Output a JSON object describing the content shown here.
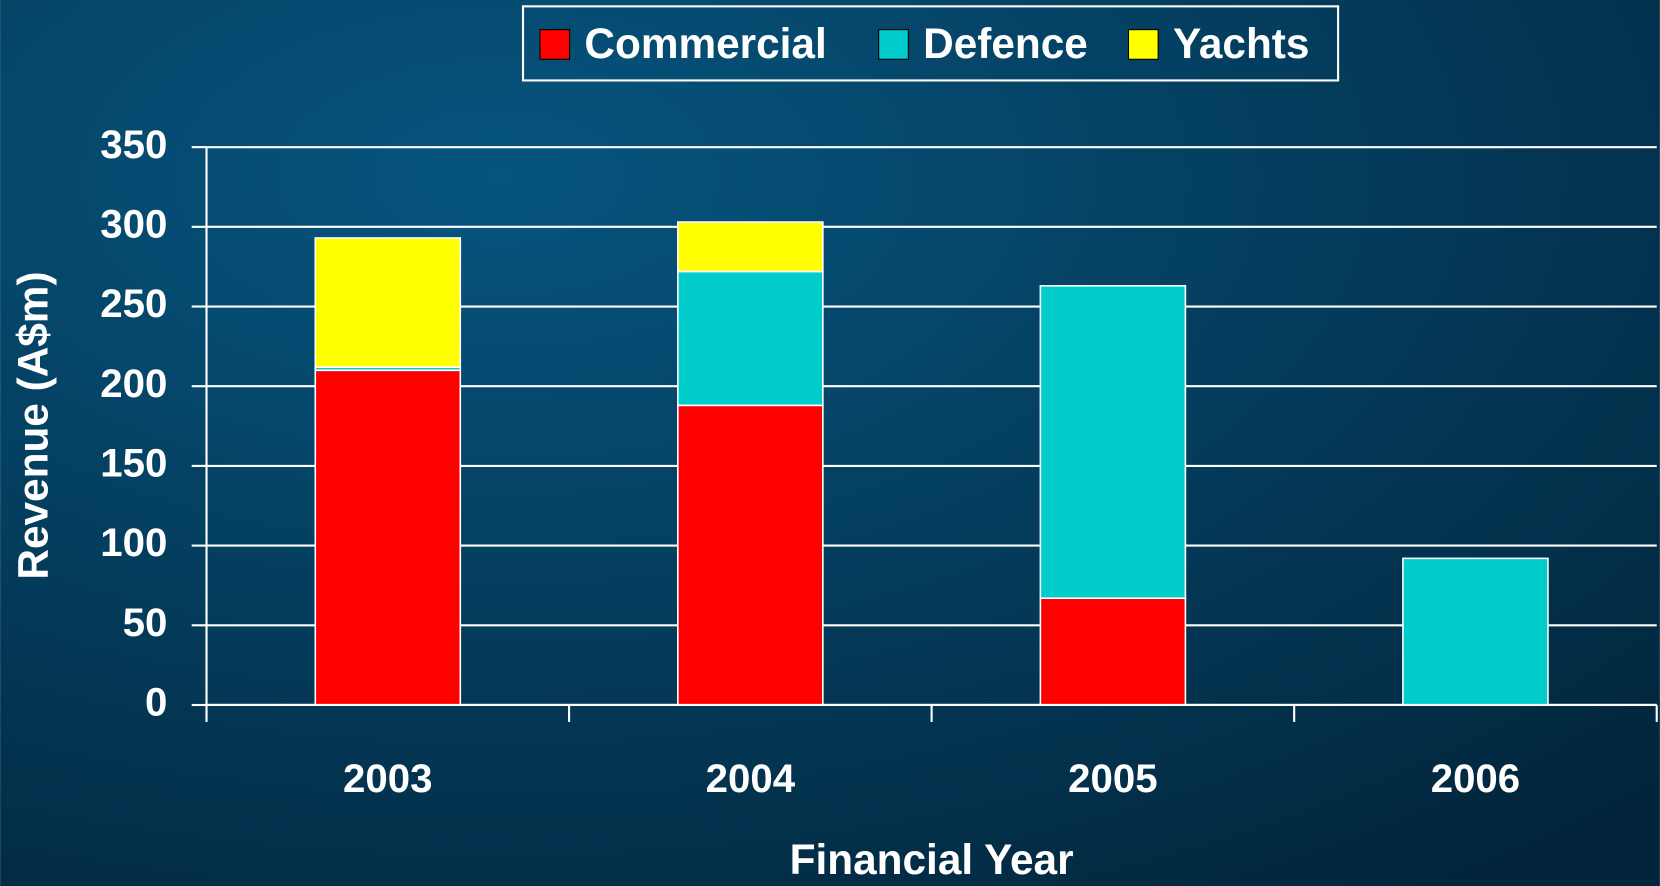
{
  "chart_data": {
    "type": "stacked_bar",
    "x_label": "Financial Year",
    "y_label": "Revenue (A$m)",
    "categories": [
      "2003",
      "2004",
      "2005",
      "2006"
    ],
    "series": [
      {
        "name": "Commercial",
        "color": "#ff0000",
        "values": [
          210,
          188,
          67,
          0
        ]
      },
      {
        "name": "Defence",
        "color": "#00cccc",
        "values": [
          2,
          84,
          196,
          92
        ]
      },
      {
        "name": "Yachts",
        "color": "#ffff00",
        "values": [
          81,
          31,
          0,
          0
        ]
      }
    ],
    "ylim": [
      0,
      350
    ],
    "yticks": [
      0,
      50,
      100,
      150,
      200,
      250,
      300,
      350
    ],
    "grid": true,
    "legend": "top"
  }
}
